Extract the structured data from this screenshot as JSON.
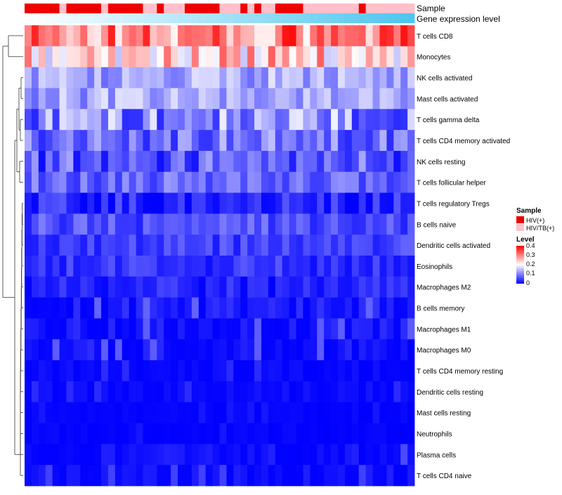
{
  "chart_data": {
    "type": "heatmap",
    "annotation_labels": {
      "sample": "Sample",
      "gene_expression": "Gene expression level"
    },
    "row_labels": [
      "T cells CD8",
      "Monocytes",
      "NK cells activated",
      "Mast cells activated",
      "T cells gamma delta",
      "T cells CD4 memory activated",
      "NK cells resting",
      "T cells follicular helper",
      "T cells regulatory  Tregs",
      "B cells naive",
      "Dendritic cells activated",
      "Eosinophils",
      "Macrophages M2",
      "B cells memory",
      "Macrophages M1",
      "Macrophages M0",
      "T cells CD4 memory resting",
      "Dendritic cells resting",
      "Mast cells resting",
      "Neutrophils",
      "Plasma cells",
      "T cells CD4 naive"
    ],
    "sample_groups": [
      "HIV(+)",
      "HIV(+)",
      "HIV(+)",
      "HIV(+)",
      "HIV(+)",
      "HIV/TB(+)",
      "HIV(+)",
      "HIV(+)",
      "HIV(+)",
      "HIV(+)",
      "HIV(+)",
      "HIV/TB(+)",
      "HIV(+)",
      "HIV(+)",
      "HIV(+)",
      "HIV(+)",
      "HIV(+)",
      "HIV/TB(+)",
      "HIV/TB(+)",
      "HIV(+)",
      "HIV/TB(+)",
      "HIV/TB(+)",
      "HIV/TB(+)",
      "HIV(+)",
      "HIV(+)",
      "HIV(+)",
      "HIV(+)",
      "HIV(+)",
      "HIV/TB(+)",
      "HIV/TB(+)",
      "HIV/TB(+)",
      "HIV(+)",
      "HIV/TB(+)",
      "HIV(+)",
      "HIV/TB(+)",
      "HIV/TB(+)",
      "HIV(+)",
      "HIV(+)",
      "HIV(+)",
      "HIV(+)",
      "HIV/TB(+)",
      "HIV/TB(+)",
      "HIV/TB(+)",
      "HIV/TB(+)",
      "HIV/TB(+)",
      "HIV/TB(+)",
      "HIV/TB(+)",
      "HIV/TB(+)",
      "HIV(+)",
      "HIV/TB(+)",
      "HIV/TB(+)",
      "HIV/TB(+)",
      "HIV/TB(+)",
      "HIV/TB(+)",
      "HIV/TB(+)",
      "HIV/TB(+)"
    ],
    "expression_gradient": {
      "min": 0,
      "max": 1,
      "low_color": "#ffffff",
      "high_color": "#4ec5ee"
    },
    "legend": {
      "sample_title": "Sample",
      "sample_levels": [
        {
          "name": "HIV(+)",
          "color": "#ee0000"
        },
        {
          "name": "HIV/TB(+)",
          "color": "#ffc0cb"
        }
      ],
      "level_title": "Level",
      "level_ticks": [
        "0.4",
        "0.3",
        "0.2",
        "0.1",
        "0"
      ],
      "level_range": [
        0,
        0.4
      ],
      "colors": {
        "low": "#0000ff",
        "mid": "#ffffff",
        "high": "#ff0000"
      },
      "placement": "right"
    },
    "value_range": [
      0,
      0.4
    ],
    "row_profiles": [
      {
        "label": "T cells CD8",
        "mean": 0.29,
        "spread": 0.1
      },
      {
        "label": "Monocytes",
        "mean": 0.24,
        "spread": 0.09
      },
      {
        "label": "NK cells activated",
        "mean": 0.13,
        "spread": 0.05
      },
      {
        "label": "Mast cells activated",
        "mean": 0.13,
        "spread": 0.05
      },
      {
        "label": "T cells gamma delta",
        "mean": 0.11,
        "spread": 0.08
      },
      {
        "label": "T cells CD4 memory activated",
        "mean": 0.09,
        "spread": 0.06
      },
      {
        "label": "NK cells resting",
        "mean": 0.07,
        "spread": 0.06
      },
      {
        "label": "T cells follicular helper",
        "mean": 0.08,
        "spread": 0.04
      },
      {
        "label": "T cells regulatory  Tregs",
        "mean": 0.03,
        "spread": 0.04
      },
      {
        "label": "B cells naive",
        "mean": 0.06,
        "spread": 0.04
      },
      {
        "label": "Dendritic cells activated",
        "mean": 0.05,
        "spread": 0.03
      },
      {
        "label": "Eosinophils",
        "mean": 0.04,
        "spread": 0.03
      },
      {
        "label": "Macrophages M2",
        "mean": 0.025,
        "spread": 0.03
      },
      {
        "label": "B cells memory",
        "mean": 0.015,
        "spread": 0.025
      },
      {
        "label": "Macrophages M1",
        "mean": 0.01,
        "spread": 0.025
      },
      {
        "label": "Macrophages M0",
        "mean": 0.01,
        "spread": 0.025
      },
      {
        "label": "T cells CD4 memory resting",
        "mean": 0.004,
        "spread": 0.012
      },
      {
        "label": "Dendritic cells resting",
        "mean": 0.004,
        "spread": 0.012
      },
      {
        "label": "Mast cells resting",
        "mean": 0.002,
        "spread": 0.006
      },
      {
        "label": "Neutrophils",
        "mean": 0.002,
        "spread": 0.006
      },
      {
        "label": "Plasma cells",
        "mean": 0.008,
        "spread": 0.02
      },
      {
        "label": "T cells CD4 naive",
        "mean": 0.006,
        "spread": 0.018
      }
    ]
  }
}
